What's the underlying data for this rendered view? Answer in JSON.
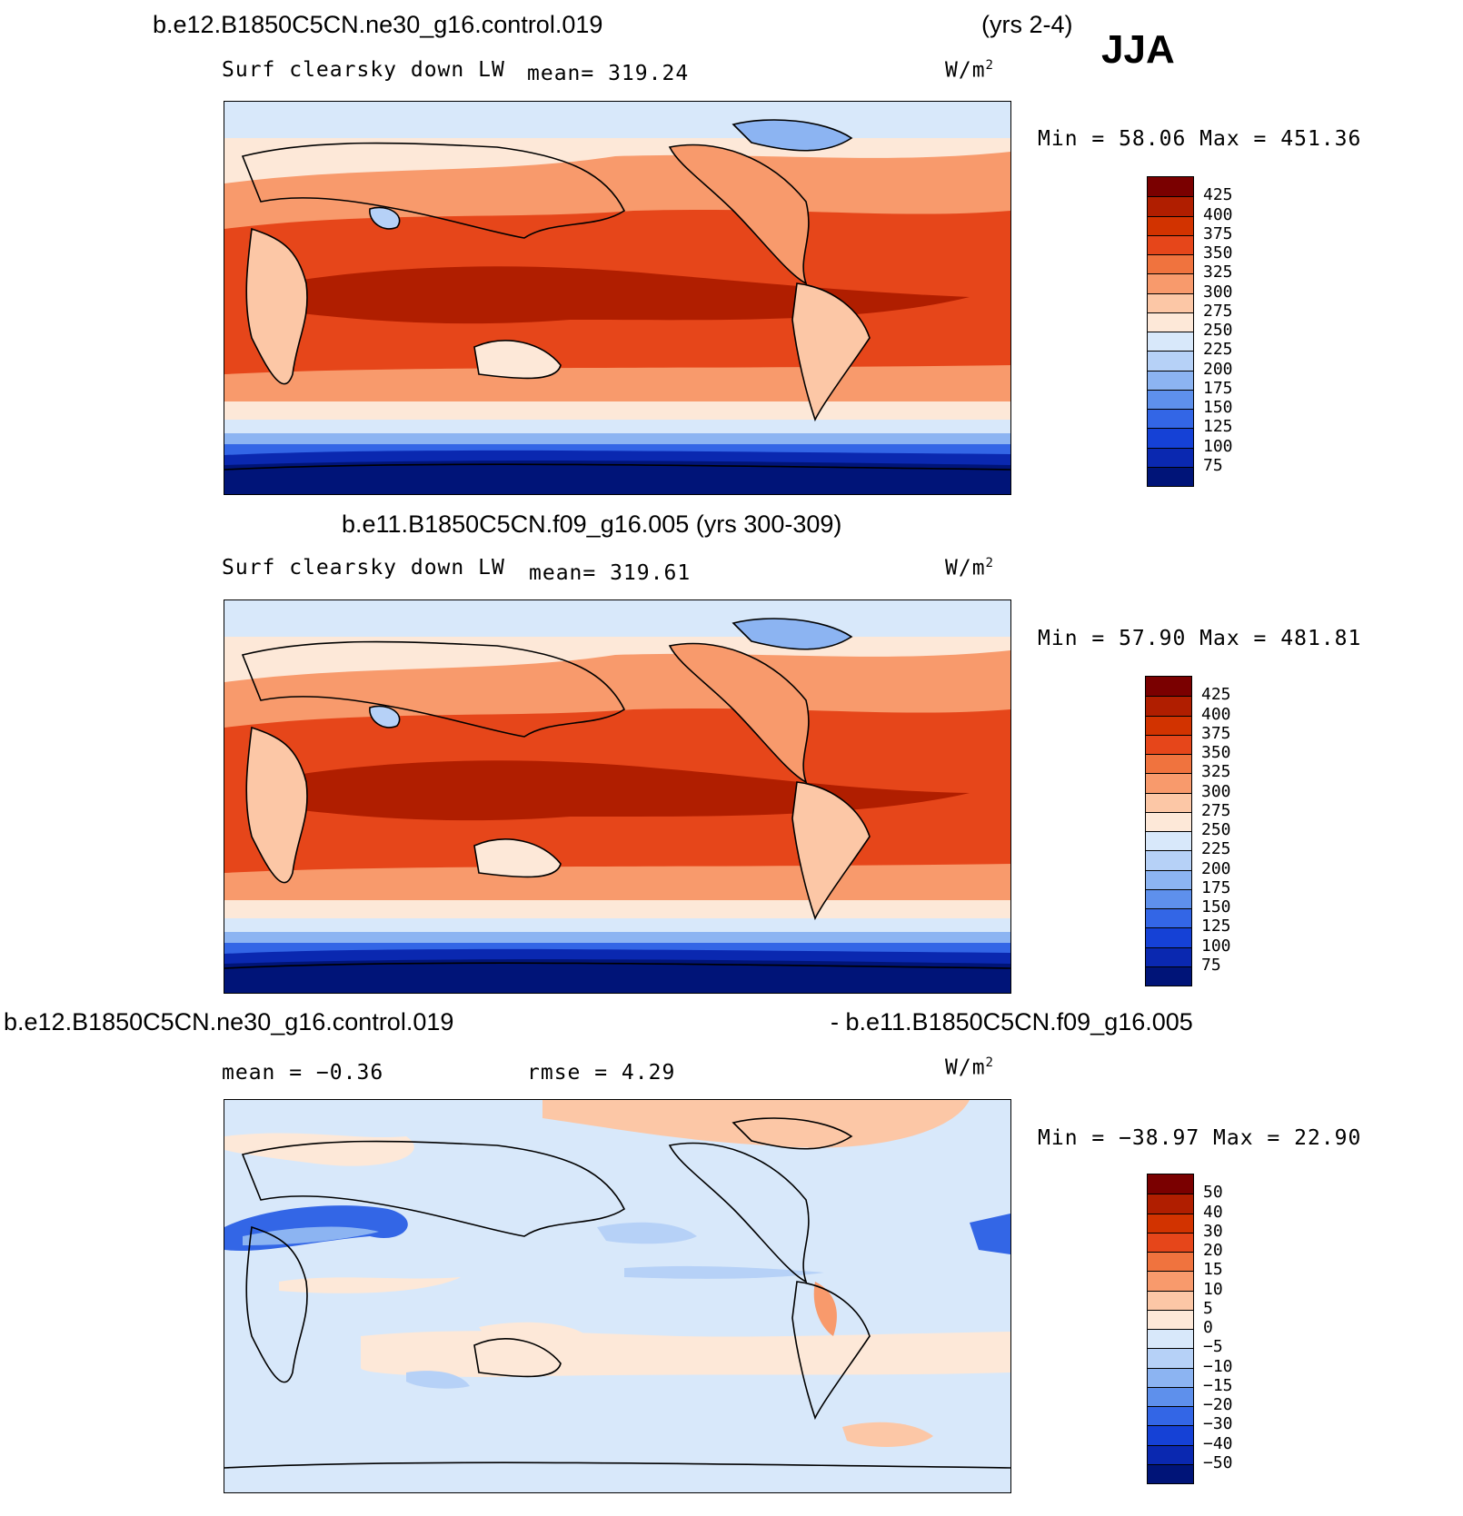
{
  "header": {
    "case_a": "b.e12.B1850C5CN.ne30_g16.control.019",
    "case_a_years": "(yrs 2-4)",
    "season": "JJA"
  },
  "panels": [
    {
      "id": "top",
      "variable": "Surf clearsky down LW",
      "mean_text": "mean= 319.24",
      "units_text": "W/m",
      "units_exp": "2",
      "minmax_text": "Min =   58.06 Max = 451.36",
      "colorbar": {
        "labels": [
          "425",
          "400",
          "375",
          "350",
          "325",
          "300",
          "275",
          "250",
          "225",
          "200",
          "175",
          "150",
          "125",
          "100",
          "75"
        ],
        "colors": [
          "#7a0000",
          "#b01e00",
          "#d23300",
          "#e6461a",
          "#f0733e",
          "#f89a6c",
          "#fcc7a6",
          "#fde8d8",
          "#d8e8fa",
          "#b6d1f7",
          "#8cb4f2",
          "#5e90ec",
          "#3366e6",
          "#1541d6",
          "#0a28b0",
          "#001478"
        ]
      }
    },
    {
      "id": "middle",
      "title": "b.e11.B1850C5CN.f09_g16.005 (yrs 300-309)",
      "variable": "Surf clearsky down LW",
      "mean_text": "mean= 319.61",
      "units_text": "W/m",
      "units_exp": "2",
      "minmax_text": "Min =   57.90 Max = 481.81",
      "colorbar": {
        "labels": [
          "425",
          "400",
          "375",
          "350",
          "325",
          "300",
          "275",
          "250",
          "225",
          "200",
          "175",
          "150",
          "125",
          "100",
          "75"
        ],
        "colors": [
          "#7a0000",
          "#b01e00",
          "#d23300",
          "#e6461a",
          "#f0733e",
          "#f89a6c",
          "#fcc7a6",
          "#fde8d8",
          "#d8e8fa",
          "#b6d1f7",
          "#8cb4f2",
          "#5e90ec",
          "#3366e6",
          "#1541d6",
          "#0a28b0",
          "#001478"
        ]
      }
    },
    {
      "id": "bottom",
      "title_left": "b.e12.B1850C5CN.ne30_g16.control.019",
      "title_right": "- b.e11.B1850C5CN.f09_g16.005",
      "mean_text": "mean =   −0.36",
      "rmse_text": "rmse =    4.29",
      "units_text": "W/m",
      "units_exp": "2",
      "minmax_text": "Min = −38.97 Max =   22.90",
      "colorbar": {
        "labels": [
          "50",
          "40",
          "30",
          "20",
          "15",
          "10",
          "5",
          "0",
          "−5",
          "−10",
          "−15",
          "−20",
          "−30",
          "−40",
          "−50"
        ],
        "colors": [
          "#7a0000",
          "#b01e00",
          "#d23300",
          "#e6461a",
          "#f0733e",
          "#f89a6c",
          "#fcc7a6",
          "#fde8d8",
          "#d8e8fa",
          "#b6d1f7",
          "#8cb4f2",
          "#5e90ec",
          "#3366e6",
          "#1541d6",
          "#0a28b0",
          "#001478"
        ]
      }
    }
  ]
}
